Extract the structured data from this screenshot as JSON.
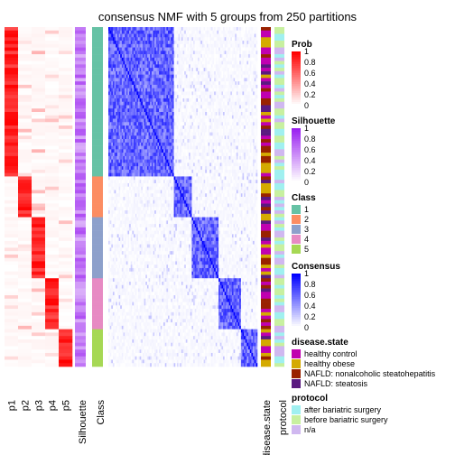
{
  "chart_data": {
    "type": "heatmap",
    "title": "consensus NMF with 5 groups from 250 partitions",
    "n_samples": 100,
    "prob": {
      "columns": [
        "p1",
        "p2",
        "p3",
        "p4",
        "p5"
      ],
      "sample_class": [
        1,
        1,
        1,
        1,
        1,
        1,
        1,
        1,
        1,
        1,
        1,
        1,
        1,
        1,
        1,
        1,
        1,
        1,
        1,
        1,
        1,
        1,
        1,
        1,
        1,
        1,
        1,
        1,
        1,
        1,
        1,
        1,
        1,
        1,
        1,
        1,
        1,
        1,
        1,
        1,
        1,
        1,
        1,
        1,
        2,
        2,
        2,
        2,
        2,
        2,
        2,
        2,
        2,
        2,
        2,
        2,
        3,
        3,
        3,
        3,
        3,
        3,
        3,
        3,
        3,
        3,
        3,
        3,
        3,
        3,
        3,
        3,
        3,
        3,
        4,
        4,
        4,
        4,
        4,
        4,
        4,
        4,
        4,
        4,
        4,
        4,
        4,
        4,
        4,
        5,
        5,
        5,
        5,
        5,
        5,
        5,
        5,
        5,
        5,
        5
      ],
      "note": "per-sample membership probability, highest for the assigned class"
    },
    "silhouette": {
      "label": "Silhouette"
    },
    "class": {
      "label": "Class"
    },
    "consensus": {
      "label": "Consensus"
    },
    "disease_state": {
      "label": "disease.state"
    },
    "protocol": {
      "label": "protocol"
    },
    "legends": {
      "prob": {
        "title": "Prob",
        "ticks": [
          "1",
          "0.8",
          "0.6",
          "0.4",
          "0.2",
          "0"
        ],
        "low": "#ffffff",
        "high": "#ff0000"
      },
      "silhouette": {
        "title": "Silhouette",
        "ticks": [
          "1",
          "0.8",
          "0.6",
          "0.4",
          "0.2",
          "0"
        ],
        "low": "#ffffff",
        "high": "#9a20f0"
      },
      "class": {
        "title": "Class",
        "items": [
          {
            "label": "1",
            "color": "#66c2a5"
          },
          {
            "label": "2",
            "color": "#fc8d62"
          },
          {
            "label": "3",
            "color": "#8da0cb"
          },
          {
            "label": "4",
            "color": "#e78ac3"
          },
          {
            "label": "5",
            "color": "#a6d854"
          }
        ]
      },
      "consensus": {
        "title": "Consensus",
        "ticks": [
          "1",
          "0.8",
          "0.6",
          "0.4",
          "0.2",
          "0"
        ],
        "low": "#ffffff",
        "high": "#0000ff"
      },
      "disease_state": {
        "title": "disease.state",
        "items": [
          {
            "label": "healthy control",
            "color": "#c000b0"
          },
          {
            "label": "healthy obese",
            "color": "#d4aa00"
          },
          {
            "label": "NAFLD: nonalcoholic steatohepatitis",
            "color": "#992200"
          },
          {
            "label": "NAFLD: steatosis",
            "color": "#5a1a80"
          }
        ]
      },
      "protocol": {
        "title": "protocol",
        "items": [
          {
            "label": "after bariatric surgery",
            "color": "#a0f0f0"
          },
          {
            "label": "before bariatric surgery",
            "color": "#c8f0a0"
          },
          {
            "label": "n/a",
            "color": "#d0b8f0"
          }
        ]
      }
    }
  }
}
